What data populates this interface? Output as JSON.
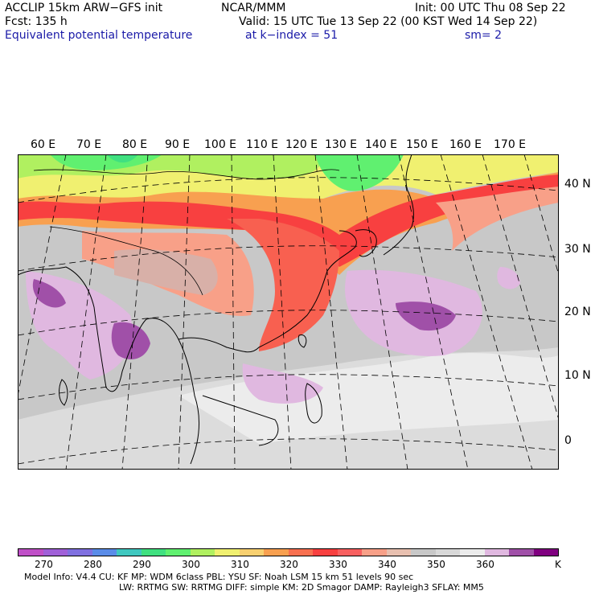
{
  "header": {
    "model": "ACCLIP 15km ARW−GFS init",
    "forecast": "Fcst:   135 h",
    "field": "Equivalent potential temperature",
    "org": "NCAR/MMM",
    "init": "Init: 00 UTC Thu 08 Sep 22",
    "valid": "Valid: 15 UTC Tue 13 Sep 22 (00 KST Wed 14 Sep 22)",
    "level": "at k−index =   51",
    "smooth": "sm= 2"
  },
  "map": {
    "longitude_labels": [
      "60 E",
      "70 E",
      "80 E",
      "90 E",
      "100 E",
      "110 E",
      "120 E",
      "130 E",
      "140 E",
      "150 E",
      "160 E",
      "170 E"
    ],
    "latitude_labels": [
      "40 N",
      "30 N",
      "20 N",
      "10 N",
      "0"
    ]
  },
  "colorbar": {
    "colors": [
      "#c050c8",
      "#a060d8",
      "#8070e0",
      "#5a8ce8",
      "#40c8c0",
      "#40e080",
      "#60f070",
      "#b0f060",
      "#f0f070",
      "#f8d070",
      "#f8a050",
      "#f87050",
      "#f84040",
      "#f86060",
      "#f8a088",
      "#e8c0b0",
      "#c8c8c8",
      "#d8d8d8",
      "#ececec",
      "#e0b8e0",
      "#a050a8",
      "#800080"
    ],
    "tick_labels": [
      "270",
      "280",
      "290",
      "300",
      "310",
      "320",
      "330",
      "340",
      "350",
      "360",
      "K"
    ]
  },
  "footer": {
    "line1": "Model Info: V4.4     CU: KF      MP: WDM 6class   PBL: YSU      SF: Noah LSM     15 km    51 levels    90 sec",
    "line2": "LW: RRTMG    SW: RRTMG   DIFF: simple KM: 2D Smagor DAMP: Rayleigh3   SFLAY: MM5"
  }
}
